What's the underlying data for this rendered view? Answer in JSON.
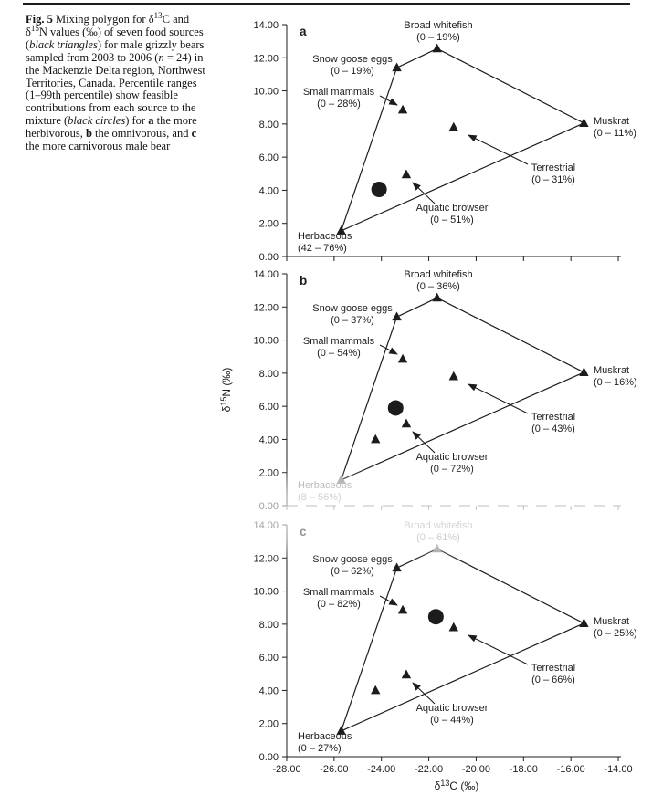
{
  "caption": {
    "segments": [
      {
        "t": "Fig. 5",
        "b": 1
      },
      {
        "t": " Mixing polygon for δ"
      },
      {
        "t": "13",
        "sup": 1
      },
      {
        "t": "C and δ"
      },
      {
        "t": "15",
        "sup": 1
      },
      {
        "t": "N values (‰) of seven food sources ("
      },
      {
        "t": "black triangles",
        "i": 1
      },
      {
        "t": ") for male grizzly bears sampled from 2003 to 2006 ("
      },
      {
        "t": "n",
        "i": 1
      },
      {
        "t": " = 24) in the Mackenzie Delta region, Northwest Territories, Canada. Percentile ranges (1–99th percentile) show feasible contributions from each source to the mixture ("
      },
      {
        "t": "black circles",
        "i": 1
      },
      {
        "t": ") for "
      },
      {
        "t": "a",
        "b": 1
      },
      {
        "t": " the more herbivorous, "
      },
      {
        "t": "b",
        "b": 1
      },
      {
        "t": " the omnivorous, and "
      },
      {
        "t": "c",
        "b": 1
      },
      {
        "t": " the more carnivorous male bear"
      }
    ]
  },
  "chart_data": {
    "type": "scatter",
    "colors": {
      "ink": "#1c1c1c",
      "faded": "#9b9b9b"
    },
    "x_axis": {
      "title_segments": [
        {
          "t": "δ"
        },
        {
          "t": "13",
          "sup": 1
        },
        {
          "t": "C (‰)"
        }
      ],
      "min": -28,
      "max": -14,
      "step": 2,
      "tick_labels": [
        "-28.00",
        "-26.00",
        "-24.00",
        "-22.00",
        "-20.00",
        "-18.00",
        "-16.00",
        "-14.00"
      ]
    },
    "y_axis": {
      "title_segments": [
        {
          "t": "δ"
        },
        {
          "t": "15",
          "sup": 1
        },
        {
          "t": "N (‰)"
        }
      ],
      "min": 0,
      "max": 14,
      "step": 2,
      "tick_labels": [
        "0.00",
        "2.00",
        "4.00",
        "6.00",
        "8.00",
        "10.00",
        "12.00",
        "14.00"
      ]
    },
    "polygon_vertex_order": [
      "herbaceous",
      "snow_goose_eggs",
      "broad_whitefish",
      "muskrat"
    ],
    "sources": [
      {
        "id": "herbaceous",
        "name": "Herbaceous",
        "x": -25.7,
        "y": 1.55,
        "vertex": true
      },
      {
        "id": "snow_goose_eggs",
        "name": "Snow goose eggs",
        "x": -23.35,
        "y": 11.4,
        "vertex": true
      },
      {
        "id": "broad_whitefish",
        "name": "Broad whitefish",
        "x": -21.65,
        "y": 12.55,
        "vertex": true
      },
      {
        "id": "muskrat",
        "name": "Muskrat",
        "x": -15.45,
        "y": 8.05,
        "vertex": true
      },
      {
        "id": "small_mammals",
        "name": "Small mammals",
        "x": -23.1,
        "y": 8.85,
        "vertex": false
      },
      {
        "id": "terrestrial",
        "name": "Terrestrial",
        "x": -20.95,
        "y": 7.8,
        "vertex": false
      },
      {
        "id": "aquatic_browser",
        "name": "Aquatic browser",
        "x": -22.95,
        "y": 4.95,
        "vertex": false
      }
    ],
    "unlabeled_triangle": {
      "x": -24.25,
      "y": 4.0,
      "panels": [
        "b",
        "c"
      ]
    },
    "panels": [
      {
        "id": "a",
        "letter": "a",
        "mixture": {
          "x": -24.1,
          "y": 4.05
        },
        "ranges": {
          "herbaceous": "(42 – 76%)",
          "snow_goose_eggs": "(0 – 19%)",
          "broad_whitefish": "(0 – 19%)",
          "muskrat": "(0 – 11%)",
          "small_mammals": "(0 – 28%)",
          "terrestrial": "(0 – 31%)",
          "aquatic_browser": "(0 – 51%)"
        },
        "faded_sources": [],
        "dashed_x_axis": false,
        "show_x_tick_labels": false,
        "show_x_title": false,
        "show_y_title": false
      },
      {
        "id": "b",
        "letter": "b",
        "mixture": {
          "x": -23.4,
          "y": 5.9
        },
        "ranges": {
          "herbaceous": "(8 – 56%)",
          "snow_goose_eggs": "(0 – 37%)",
          "broad_whitefish": "(0 – 36%)",
          "muskrat": "(0 – 16%)",
          "small_mammals": "(0 – 54%)",
          "terrestrial": "(0 – 43%)",
          "aquatic_browser": "(0 – 72%)"
        },
        "faded_sources": [
          "herbaceous"
        ],
        "dashed_x_axis": true,
        "show_x_tick_labels": false,
        "show_x_title": false,
        "show_y_title": true
      },
      {
        "id": "c",
        "letter": "c",
        "mixture": {
          "x": -21.7,
          "y": 8.45
        },
        "ranges": {
          "herbaceous": "(0 – 27%)",
          "snow_goose_eggs": "(0 – 62%)",
          "broad_whitefish": "(0 – 61%)",
          "muskrat": "(0 – 25%)",
          "small_mammals": "(0 – 82%)",
          "terrestrial": "(0 – 66%)",
          "aquatic_browser": "(0 – 44%)"
        },
        "faded_sources": [
          "broad_whitefish"
        ],
        "dashed_x_axis": false,
        "show_x_tick_labels": true,
        "show_x_title": true,
        "show_y_title": false
      }
    ]
  }
}
